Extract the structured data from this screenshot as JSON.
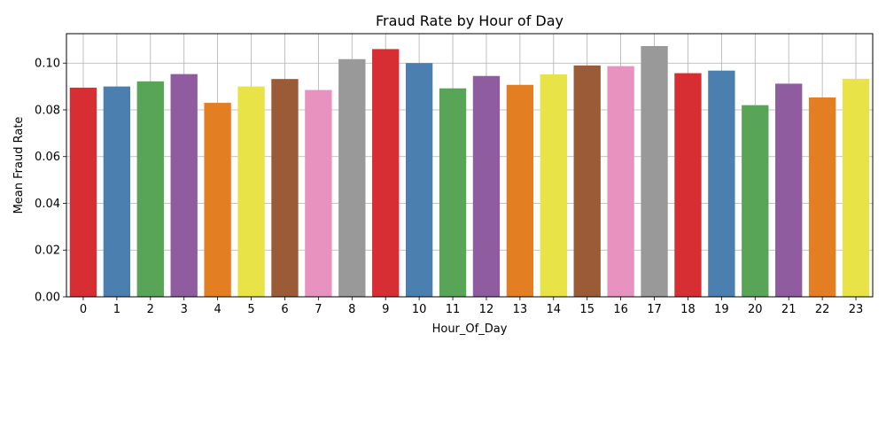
{
  "chart_data": {
    "type": "bar",
    "title": "Fraud Rate by Hour of Day",
    "xlabel": "Hour_Of_Day",
    "ylabel": "Mean Fraud Rate",
    "categories": [
      "0",
      "1",
      "2",
      "3",
      "4",
      "5",
      "6",
      "7",
      "8",
      "9",
      "10",
      "11",
      "12",
      "13",
      "14",
      "15",
      "16",
      "17",
      "18",
      "19",
      "20",
      "21",
      "22",
      "23"
    ],
    "values": [
      0.0895,
      0.09,
      0.0922,
      0.0953,
      0.083,
      0.09,
      0.0932,
      0.0885,
      0.1017,
      0.106,
      0.1,
      0.0892,
      0.0945,
      0.0907,
      0.0952,
      0.099,
      0.0987,
      0.1073,
      0.0957,
      0.0968,
      0.082,
      0.0912,
      0.0853,
      0.0933
    ],
    "colors": [
      "#d62e33",
      "#4a7fb0",
      "#58a557",
      "#8e5c9f",
      "#e37f22",
      "#e8e347",
      "#9a5b36",
      "#e892c0",
      "#999999",
      "#d62e33",
      "#4a7fb0",
      "#58a557",
      "#8e5c9f",
      "#e37f22",
      "#e8e347",
      "#9a5b36",
      "#e892c0",
      "#999999",
      "#d62e33",
      "#4a7fb0",
      "#58a557",
      "#8e5c9f",
      "#e37f22",
      "#e8e347"
    ],
    "yticks": [
      "0.00",
      "0.02",
      "0.04",
      "0.06",
      "0.08",
      "0.10"
    ],
    "ylim": [
      0,
      0.1126
    ],
    "grid": true
  }
}
